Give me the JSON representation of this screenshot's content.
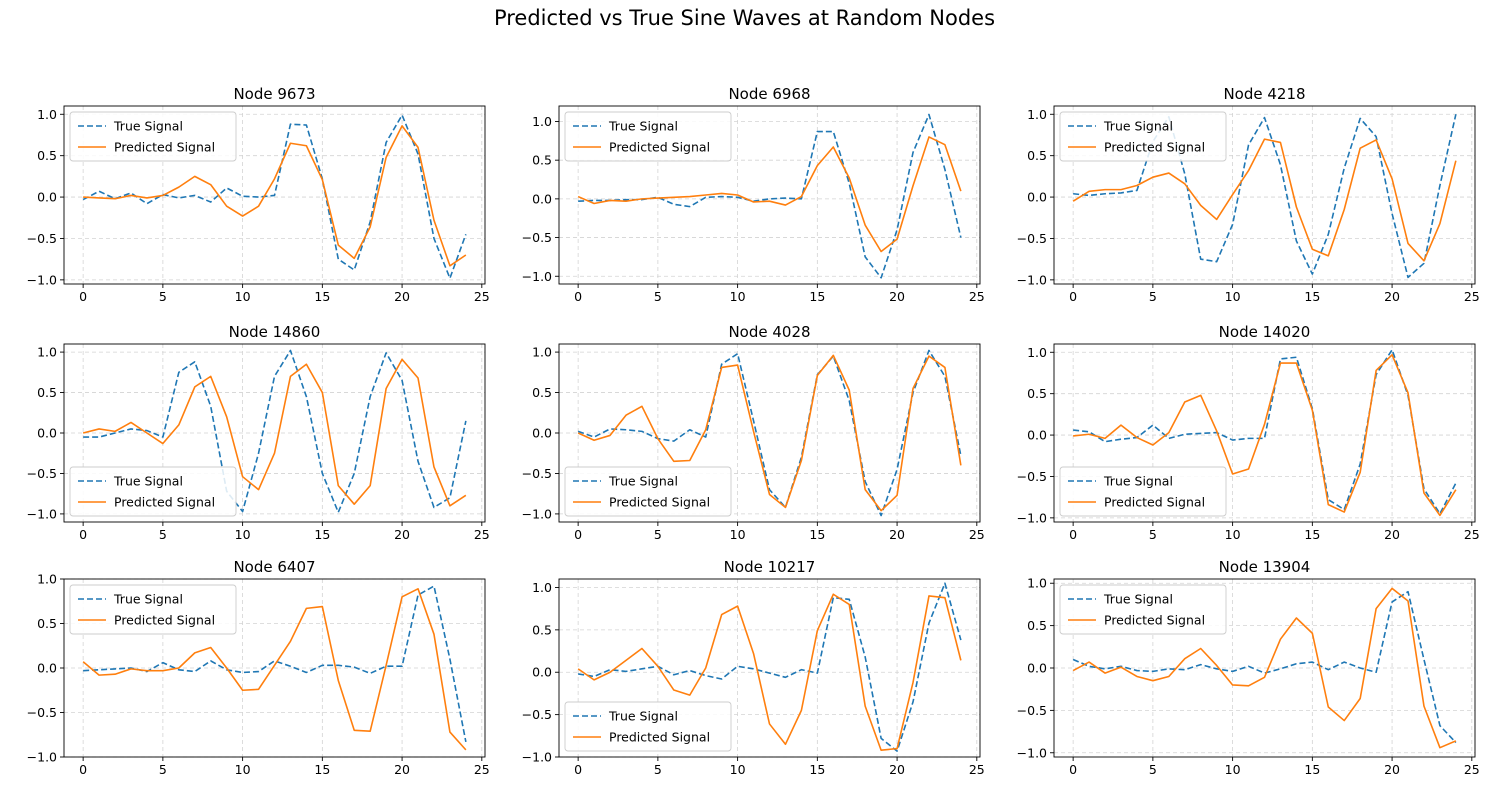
{
  "figure": {
    "suptitle": "Predicted vs True Sine Waves at Random Nodes"
  },
  "colors": {
    "true": "#1f77b4",
    "pred": "#ff7f0e",
    "grid": "#d3d3d3",
    "axis": "#000000"
  },
  "chart_data": [
    {
      "type": "line",
      "title": "Node 9673",
      "xlim": [
        -1.2,
        25.2
      ],
      "ylim": [
        -1.05,
        1.1
      ],
      "xticks": [
        0,
        5,
        10,
        15,
        20,
        25
      ],
      "yticks": [
        -1.0,
        -0.5,
        0.0,
        0.5,
        1.0
      ],
      "ytick_labels": [
        "−1.0",
        "−0.5",
        "0.0",
        "0.5",
        "1.0"
      ],
      "legend_loc": "upper left",
      "grid": true,
      "series": [
        {
          "name": "True Signal",
          "style": "dashed",
          "values": [
            -0.03,
            0.07,
            -0.02,
            0.05,
            -0.08,
            0.03,
            -0.01,
            0.02,
            -0.06,
            0.11,
            0.01,
            0.0,
            0.02,
            0.88,
            0.87,
            0.22,
            -0.75,
            -0.88,
            -0.3,
            0.66,
            0.99,
            0.52,
            -0.5,
            -0.98,
            -0.45
          ]
        },
        {
          "name": "Predicted Signal",
          "style": "solid",
          "values": [
            0.0,
            -0.01,
            -0.02,
            0.02,
            -0.01,
            0.02,
            0.12,
            0.25,
            0.15,
            -0.11,
            -0.23,
            -0.11,
            0.22,
            0.65,
            0.62,
            0.21,
            -0.58,
            -0.74,
            -0.36,
            0.48,
            0.86,
            0.6,
            -0.28,
            -0.83,
            -0.7
          ]
        }
      ]
    },
    {
      "type": "line",
      "title": "Node 6968",
      "xlim": [
        -1.2,
        25.2
      ],
      "ylim": [
        -1.1,
        1.2
      ],
      "xticks": [
        0,
        5,
        10,
        15,
        20,
        25
      ],
      "yticks": [
        -1.0,
        -0.5,
        0.0,
        0.5,
        1.0
      ],
      "ytick_labels": [
        "−1.0",
        "−0.5",
        "0.0",
        "0.5",
        "1.0"
      ],
      "legend_loc": "upper left",
      "grid": true,
      "series": [
        {
          "name": "True Signal",
          "style": "dashed",
          "values": [
            -0.03,
            -0.02,
            -0.02,
            -0.01,
            -0.01,
            0.02,
            -0.07,
            -0.1,
            0.02,
            0.03,
            0.02,
            -0.03,
            0.0,
            0.01,
            0.0,
            0.87,
            0.87,
            0.2,
            -0.75,
            -1.02,
            -0.4,
            0.6,
            1.09,
            0.38,
            -0.5
          ]
        },
        {
          "name": "Predicted Signal",
          "style": "solid",
          "values": [
            0.03,
            -0.06,
            -0.02,
            -0.03,
            0.0,
            0.01,
            0.02,
            0.03,
            0.05,
            0.07,
            0.05,
            -0.04,
            -0.03,
            -0.08,
            0.03,
            0.43,
            0.67,
            0.27,
            -0.34,
            -0.68,
            -0.52,
            0.17,
            0.8,
            0.7,
            0.1
          ]
        }
      ]
    },
    {
      "type": "line",
      "title": "Node 4218",
      "xlim": [
        -1.2,
        25.2
      ],
      "ylim": [
        -1.05,
        1.1
      ],
      "xticks": [
        0,
        5,
        10,
        15,
        20,
        25
      ],
      "yticks": [
        -1.0,
        -0.5,
        0.0,
        0.5,
        1.0
      ],
      "ytick_labels": [
        "−1.0",
        "−0.5",
        "0.0",
        "0.5",
        "1.0"
      ],
      "legend_loc": "upper left",
      "grid": true,
      "series": [
        {
          "name": "True Signal",
          "style": "dashed",
          "values": [
            0.04,
            0.02,
            0.04,
            0.05,
            0.08,
            0.67,
            0.97,
            0.28,
            -0.75,
            -0.78,
            -0.33,
            0.63,
            0.96,
            0.39,
            -0.53,
            -0.93,
            -0.45,
            0.35,
            0.95,
            0.73,
            -0.2,
            -0.97,
            -0.8,
            0.14,
            1.0
          ]
        },
        {
          "name": "Predicted Signal",
          "style": "solid",
          "values": [
            -0.05,
            0.07,
            0.09,
            0.09,
            0.14,
            0.24,
            0.29,
            0.16,
            -0.1,
            -0.27,
            0.03,
            0.32,
            0.7,
            0.66,
            -0.12,
            -0.63,
            -0.71,
            -0.15,
            0.59,
            0.69,
            0.22,
            -0.56,
            -0.77,
            -0.32,
            0.44
          ]
        }
      ]
    },
    {
      "type": "line",
      "title": "Node 14860",
      "xlim": [
        -1.2,
        25.2
      ],
      "ylim": [
        -1.1,
        1.1
      ],
      "xticks": [
        0,
        5,
        10,
        15,
        20,
        25
      ],
      "yticks": [
        -1.0,
        -0.5,
        0.0,
        0.5,
        1.0
      ],
      "ytick_labels": [
        "−1.0",
        "−0.5",
        "0.0",
        "0.5",
        "1.0"
      ],
      "legend_loc": "lower left",
      "grid": true,
      "series": [
        {
          "name": "True Signal",
          "style": "dashed",
          "values": [
            -0.05,
            -0.05,
            0.0,
            0.05,
            0.03,
            -0.05,
            0.75,
            0.88,
            0.33,
            -0.72,
            -0.97,
            -0.25,
            0.7,
            1.02,
            0.45,
            -0.5,
            -0.98,
            -0.5,
            0.45,
            0.99,
            0.65,
            -0.35,
            -0.92,
            -0.8,
            0.15
          ]
        },
        {
          "name": "Predicted Signal",
          "style": "solid",
          "values": [
            0.0,
            0.05,
            0.02,
            0.13,
            0.0,
            -0.13,
            0.1,
            0.57,
            0.7,
            0.2,
            -0.54,
            -0.7,
            -0.25,
            0.7,
            0.85,
            0.5,
            -0.65,
            -0.88,
            -0.65,
            0.55,
            0.91,
            0.68,
            -0.42,
            -0.9,
            -0.77
          ]
        }
      ]
    },
    {
      "type": "line",
      "title": "Node 4028",
      "xlim": [
        -1.2,
        25.2
      ],
      "ylim": [
        -1.1,
        1.1
      ],
      "xticks": [
        0,
        5,
        10,
        15,
        20,
        25
      ],
      "yticks": [
        -1.0,
        -0.5,
        0.0,
        0.5,
        1.0
      ],
      "ytick_labels": [
        "−1.0",
        "−0.5",
        "0.0",
        "0.5",
        "1.0"
      ],
      "legend_loc": "lower left",
      "grid": true,
      "series": [
        {
          "name": "True Signal",
          "style": "dashed",
          "values": [
            0.02,
            -0.05,
            0.05,
            0.04,
            0.02,
            -0.07,
            -0.1,
            0.04,
            -0.05,
            0.85,
            0.98,
            0.15,
            -0.7,
            -0.92,
            -0.3,
            0.72,
            0.95,
            0.4,
            -0.6,
            -1.02,
            -0.45,
            0.5,
            1.02,
            0.7,
            -0.28
          ]
        },
        {
          "name": "Predicted Signal",
          "style": "solid",
          "values": [
            0.0,
            -0.09,
            -0.03,
            0.22,
            0.33,
            -0.07,
            -0.35,
            -0.34,
            0.04,
            0.81,
            0.84,
            0.02,
            -0.76,
            -0.92,
            -0.34,
            0.71,
            0.96,
            0.53,
            -0.7,
            -0.96,
            -0.77,
            0.55,
            0.95,
            0.81,
            -0.4
          ]
        }
      ]
    },
    {
      "type": "line",
      "title": "Node 14020",
      "xlim": [
        -1.2,
        25.2
      ],
      "ylim": [
        -1.05,
        1.1
      ],
      "xticks": [
        0,
        5,
        10,
        15,
        20,
        25
      ],
      "yticks": [
        -1.0,
        -0.5,
        0.0,
        0.5,
        1.0
      ],
      "ytick_labels": [
        "−1.0",
        "−0.5",
        "0.0",
        "0.5",
        "1.0"
      ],
      "legend_loc": "lower left",
      "grid": true,
      "series": [
        {
          "name": "True Signal",
          "style": "dashed",
          "values": [
            0.06,
            0.04,
            -0.08,
            -0.05,
            -0.03,
            0.12,
            -0.04,
            0.01,
            0.02,
            0.03,
            -0.06,
            -0.04,
            -0.04,
            0.92,
            0.94,
            0.32,
            -0.78,
            -0.9,
            -0.35,
            0.73,
            1.03,
            0.48,
            -0.65,
            -0.95,
            -0.58
          ]
        },
        {
          "name": "Predicted Signal",
          "style": "solid",
          "values": [
            -0.01,
            0.01,
            -0.04,
            0.12,
            -0.03,
            -0.12,
            0.03,
            0.4,
            0.48,
            0.05,
            -0.47,
            -0.41,
            0.13,
            0.87,
            0.87,
            0.3,
            -0.84,
            -0.93,
            -0.45,
            0.78,
            0.97,
            0.51,
            -0.7,
            -0.97,
            -0.66
          ]
        }
      ]
    },
    {
      "type": "line",
      "title": "Node 6407",
      "xlim": [
        -1.2,
        25.2
      ],
      "ylim": [
        -1.0,
        1.0
      ],
      "xticks": [
        0,
        5,
        10,
        15,
        20,
        25
      ],
      "yticks": [
        -1.0,
        -0.5,
        0.0,
        0.5,
        1.0
      ],
      "ytick_labels": [
        "−1.0",
        "−0.5",
        "0.0",
        "0.5",
        "1.0"
      ],
      "legend_loc": "upper left",
      "grid": true,
      "series": [
        {
          "name": "True Signal",
          "style": "dashed",
          "values": [
            -0.03,
            -0.02,
            -0.01,
            0.0,
            -0.04,
            0.06,
            -0.02,
            -0.04,
            0.08,
            -0.02,
            -0.05,
            -0.04,
            0.08,
            0.02,
            -0.05,
            0.03,
            0.03,
            0.01,
            -0.06,
            0.02,
            0.02,
            0.82,
            0.92,
            0.1,
            -0.83
          ]
        },
        {
          "name": "Predicted Signal",
          "style": "solid",
          "values": [
            0.07,
            -0.08,
            -0.07,
            -0.01,
            -0.03,
            -0.03,
            0.0,
            0.17,
            0.23,
            0.0,
            -0.25,
            -0.24,
            0.03,
            0.3,
            0.67,
            0.69,
            -0.14,
            -0.7,
            -0.71,
            0.03,
            0.8,
            0.89,
            0.38,
            -0.72,
            -0.92
          ]
        }
      ]
    },
    {
      "type": "line",
      "title": "Node 10217",
      "xlim": [
        -1.2,
        25.2
      ],
      "ylim": [
        -1.0,
        1.1
      ],
      "xticks": [
        0,
        5,
        10,
        15,
        20,
        25
      ],
      "yticks": [
        -1.0,
        -0.5,
        0.0,
        0.5,
        1.0
      ],
      "ytick_labels": [
        "−1.0",
        "−0.5",
        "0.0",
        "0.5",
        "1.0"
      ],
      "legend_loc": "lower left",
      "grid": true,
      "series": [
        {
          "name": "True Signal",
          "style": "dashed",
          "values": [
            -0.02,
            -0.05,
            0.03,
            0.01,
            0.04,
            0.07,
            -0.03,
            0.02,
            -0.04,
            -0.08,
            0.07,
            0.04,
            -0.01,
            -0.06,
            0.03,
            -0.01,
            0.88,
            0.86,
            0.18,
            -0.78,
            -0.93,
            -0.35,
            0.58,
            1.05,
            0.38
          ]
        },
        {
          "name": "Predicted Signal",
          "style": "solid",
          "values": [
            0.04,
            -0.09,
            0.0,
            0.14,
            0.28,
            0.07,
            -0.21,
            -0.27,
            0.05,
            0.68,
            0.78,
            0.22,
            -0.61,
            -0.85,
            -0.45,
            0.49,
            0.92,
            0.8,
            -0.4,
            -0.92,
            -0.9,
            -0.12,
            0.9,
            0.88,
            0.14
          ]
        }
      ]
    },
    {
      "type": "line",
      "title": "Node 13904",
      "xlim": [
        -1.2,
        25.2
      ],
      "ylim": [
        -1.05,
        1.05
      ],
      "xticks": [
        0,
        5,
        10,
        15,
        20,
        25
      ],
      "yticks": [
        -1.0,
        -0.5,
        0.0,
        0.5,
        1.0
      ],
      "ytick_labels": [
        "−1.0",
        "−0.5",
        "0.0",
        "0.5",
        "1.0"
      ],
      "legend_loc": "upper left",
      "grid": true,
      "series": [
        {
          "name": "True Signal",
          "style": "dashed",
          "values": [
            0.1,
            0.02,
            -0.01,
            0.02,
            -0.03,
            -0.04,
            -0.01,
            -0.02,
            0.04,
            -0.01,
            -0.04,
            0.02,
            -0.06,
            -0.01,
            0.05,
            0.07,
            -0.02,
            0.07,
            0.0,
            -0.05,
            0.78,
            0.9,
            0.1,
            -0.68,
            -0.88
          ]
        },
        {
          "name": "Predicted Signal",
          "style": "solid",
          "values": [
            -0.03,
            0.07,
            -0.06,
            0.01,
            -0.1,
            -0.15,
            -0.1,
            0.11,
            0.23,
            0.03,
            -0.2,
            -0.21,
            -0.11,
            0.34,
            0.59,
            0.41,
            -0.46,
            -0.62,
            -0.36,
            0.7,
            0.94,
            0.79,
            -0.45,
            -0.94,
            -0.86
          ]
        }
      ]
    }
  ]
}
